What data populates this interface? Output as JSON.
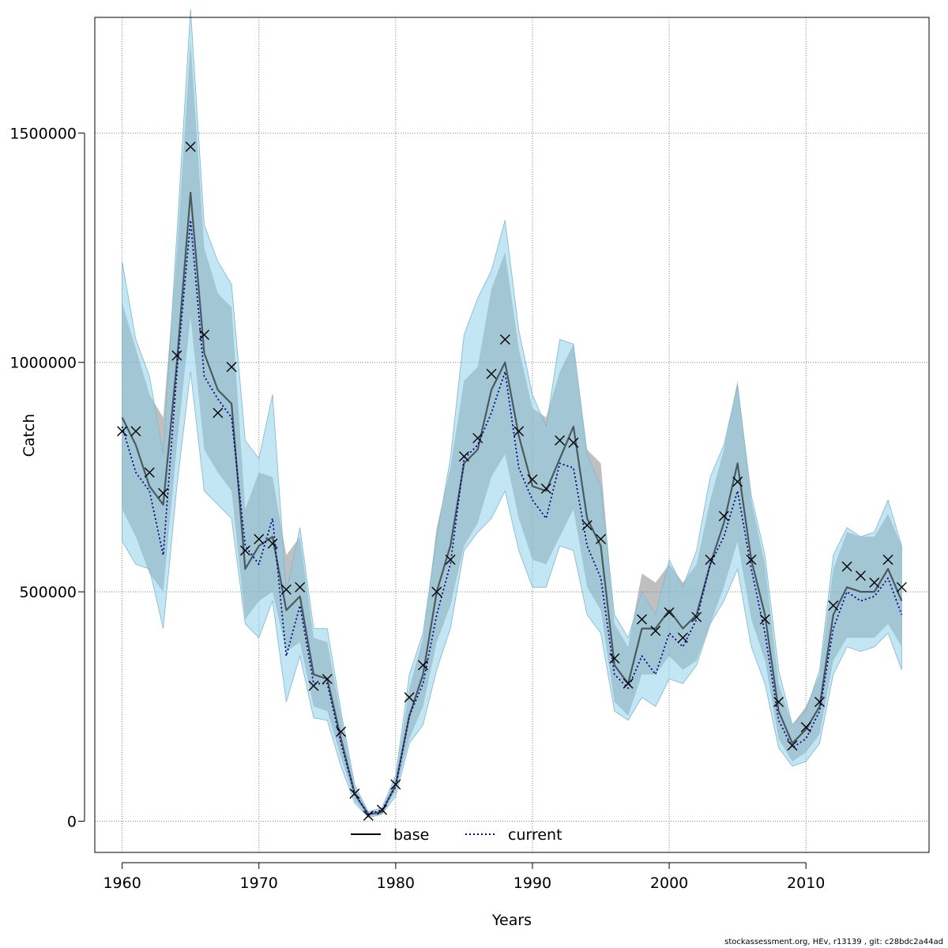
{
  "footer": "stockassessment.org, HEv, r13139 , git: c28bdc2a44ad",
  "colors": {
    "base_band": "#808080",
    "current_band": "#87CEEB",
    "base_line": "#000000",
    "current_line": "#00008B",
    "grid": "#808080"
  },
  "chart_data": {
    "type": "line",
    "xlabel": "Years",
    "ylabel": "Catch",
    "xlim": [
      1958,
      2019
    ],
    "ylim": [
      -68000,
      1752000
    ],
    "x_ticks": [
      1960,
      1970,
      1980,
      1990,
      2000,
      2010
    ],
    "x_tick_labels": [
      "1960",
      "1970",
      "1980",
      "1990",
      "2000",
      "2010"
    ],
    "y_ticks": [
      0,
      500000,
      1000000,
      1500000
    ],
    "y_tick_labels": [
      "0",
      "500000",
      "1000000",
      "1500000"
    ],
    "grid": true,
    "legend_position": "bottom",
    "legend": [
      {
        "label": "base",
        "style": "solid"
      },
      {
        "label": "current",
        "style": "dotted"
      }
    ],
    "years": [
      1960,
      1961,
      1962,
      1963,
      1964,
      1965,
      1966,
      1967,
      1968,
      1969,
      1970,
      1971,
      1972,
      1973,
      1974,
      1975,
      1976,
      1977,
      1978,
      1979,
      1980,
      1981,
      1982,
      1983,
      1984,
      1985,
      1986,
      1987,
      1988,
      1989,
      1990,
      1991,
      1992,
      1993,
      1994,
      1995,
      1996,
      1997,
      1998,
      1999,
      2000,
      2001,
      2002,
      2003,
      2004,
      2005,
      2006,
      2007,
      2008,
      2009,
      2010,
      2011,
      2012,
      2013,
      2014,
      2015,
      2016,
      2017
    ],
    "series": [
      {
        "name": "base",
        "values": [
          880000,
          820000,
          730000,
          690000,
          1000000,
          1370000,
          1020000,
          940000,
          910000,
          550000,
          600000,
          620000,
          460000,
          490000,
          320000,
          310000,
          180000,
          60000,
          15000,
          20000,
          80000,
          230000,
          320000,
          500000,
          600000,
          780000,
          810000,
          940000,
          1000000,
          840000,
          730000,
          720000,
          790000,
          860000,
          660000,
          600000,
          340000,
          300000,
          420000,
          420000,
          460000,
          420000,
          450000,
          560000,
          650000,
          780000,
          570000,
          450000,
          240000,
          170000,
          200000,
          250000,
          450000,
          510000,
          500000,
          500000,
          550000,
          480000
        ],
        "lower": [
          680000,
          620000,
          540000,
          500000,
          820000,
          1100000,
          810000,
          760000,
          720000,
          440000,
          480000,
          500000,
          370000,
          390000,
          250000,
          240000,
          140000,
          45000,
          10000,
          15000,
          65000,
          180000,
          250000,
          390000,
          470000,
          600000,
          650000,
          750000,
          800000,
          660000,
          570000,
          560000,
          620000,
          680000,
          510000,
          460000,
          260000,
          230000,
          320000,
          320000,
          360000,
          330000,
          350000,
          430000,
          510000,
          610000,
          440000,
          350000,
          180000,
          130000,
          150000,
          190000,
          350000,
          400000,
          400000,
          400000,
          430000,
          380000
        ],
        "upper": [
          1130000,
          1030000,
          930000,
          880000,
          1240000,
          1700000,
          1250000,
          1150000,
          1120000,
          680000,
          760000,
          750000,
          580000,
          620000,
          400000,
          390000,
          230000,
          75000,
          20000,
          25000,
          95000,
          290000,
          400000,
          640000,
          770000,
          960000,
          990000,
          1160000,
          1240000,
          1030000,
          900000,
          880000,
          980000,
          1040000,
          810000,
          780000,
          430000,
          380000,
          540000,
          520000,
          560000,
          520000,
          560000,
          700000,
          810000,
          960000,
          700000,
          560000,
          300000,
          210000,
          250000,
          320000,
          550000,
          630000,
          620000,
          620000,
          670000,
          600000
        ]
      },
      {
        "name": "current",
        "values": [
          860000,
          760000,
          720000,
          580000,
          980000,
          1310000,
          970000,
          920000,
          880000,
          600000,
          560000,
          660000,
          360000,
          470000,
          300000,
          300000,
          170000,
          60000,
          15000,
          25000,
          75000,
          230000,
          300000,
          450000,
          560000,
          790000,
          820000,
          890000,
          980000,
          770000,
          700000,
          660000,
          780000,
          770000,
          600000,
          530000,
          320000,
          290000,
          360000,
          320000,
          410000,
          380000,
          440000,
          560000,
          620000,
          720000,
          550000,
          410000,
          220000,
          160000,
          180000,
          240000,
          420000,
          500000,
          480000,
          490000,
          530000,
          450000
        ],
        "lower": [
          610000,
          560000,
          550000,
          420000,
          730000,
          980000,
          720000,
          690000,
          660000,
          430000,
          400000,
          480000,
          260000,
          360000,
          225000,
          220000,
          120000,
          40000,
          8000,
          15000,
          55000,
          170000,
          210000,
          330000,
          420000,
          590000,
          630000,
          660000,
          720000,
          590000,
          510000,
          510000,
          600000,
          590000,
          450000,
          410000,
          240000,
          220000,
          270000,
          250000,
          310000,
          300000,
          340000,
          430000,
          480000,
          550000,
          380000,
          300000,
          160000,
          120000,
          130000,
          170000,
          320000,
          380000,
          370000,
          380000,
          410000,
          330000
        ],
        "upper": [
          1220000,
          1050000,
          970000,
          800000,
          1280000,
          1770000,
          1300000,
          1220000,
          1170000,
          830000,
          790000,
          930000,
          500000,
          640000,
          420000,
          420000,
          240000,
          80000,
          20000,
          30000,
          100000,
          320000,
          410000,
          620000,
          790000,
          1060000,
          1140000,
          1200000,
          1310000,
          1070000,
          930000,
          860000,
          1050000,
          1040000,
          800000,
          730000,
          450000,
          400000,
          500000,
          450000,
          570000,
          510000,
          590000,
          750000,
          820000,
          950000,
          710000,
          580000,
          330000,
          210000,
          240000,
          330000,
          580000,
          640000,
          620000,
          630000,
          700000,
          600000
        ]
      },
      {
        "name": "observed",
        "values": [
          850000,
          850000,
          760000,
          715000,
          1015000,
          1470000,
          1060000,
          890000,
          990000,
          590000,
          615000,
          605000,
          505000,
          510000,
          295000,
          310000,
          195000,
          60000,
          12000,
          25000,
          80000,
          270000,
          340000,
          500000,
          570000,
          795000,
          835000,
          975000,
          1050000,
          850000,
          745000,
          725000,
          830000,
          825000,
          645000,
          615000,
          355000,
          300000,
          440000,
          415000,
          455000,
          400000,
          445000,
          570000,
          665000,
          740000,
          570000,
          440000,
          260000,
          165000,
          205000,
          260000,
          470000,
          555000,
          535000,
          520000,
          570000,
          510000
        ]
      }
    ]
  }
}
